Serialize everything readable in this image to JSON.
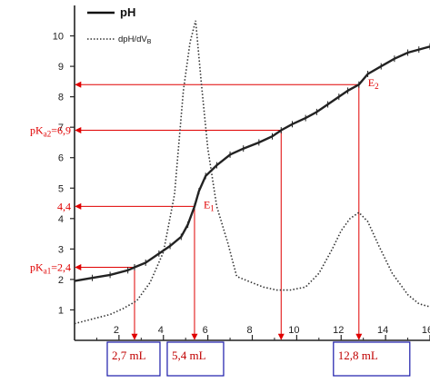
{
  "chart_data": {
    "type": "line",
    "xlim": [
      0,
      16
    ],
    "ylim": [
      0,
      11
    ],
    "x_ticks": [
      "2",
      "4",
      "6",
      "8",
      "10",
      "12",
      "14",
      "16"
    ],
    "x_tick_values": [
      2,
      4,
      6,
      8,
      10,
      12,
      14,
      16
    ],
    "y_ticks": [
      "1",
      "2",
      "3",
      "4",
      "5",
      "6",
      "7",
      "8",
      "9",
      "10"
    ],
    "y_tick_values": [
      1,
      2,
      3,
      4,
      5,
      6,
      7,
      8,
      9,
      10
    ],
    "grid": false,
    "legend_position": "top-left",
    "series": [
      {
        "name": "pH",
        "style": "solid",
        "color": "#222222",
        "x": [
          0,
          0.8,
          1.6,
          2.4,
          2.7,
          3.2,
          3.8,
          4.3,
          4.8,
          5.1,
          5.4,
          5.6,
          5.9,
          6.4,
          7.0,
          7.6,
          8.3,
          8.9,
          9.3,
          9.8,
          10.4,
          10.9,
          11.4,
          11.9,
          12.3,
          12.8,
          13.2,
          13.8,
          14.4,
          15.0,
          15.5,
          16.0
        ],
        "y": [
          1.95,
          2.05,
          2.15,
          2.3,
          2.4,
          2.55,
          2.85,
          3.1,
          3.4,
          3.8,
          4.4,
          4.9,
          5.4,
          5.75,
          6.1,
          6.3,
          6.5,
          6.7,
          6.9,
          7.1,
          7.3,
          7.5,
          7.75,
          8.0,
          8.2,
          8.4,
          8.75,
          9.0,
          9.25,
          9.45,
          9.55,
          9.65
        ]
      },
      {
        "name": "dpH/dVB",
        "style": "dotted",
        "color": "#333333",
        "x": [
          0,
          0.8,
          1.6,
          2.2,
          2.8,
          3.4,
          4.0,
          4.5,
          4.9,
          5.2,
          5.45,
          5.7,
          6.0,
          6.4,
          6.9,
          7.3,
          7.8,
          8.5,
          9.1,
          9.7,
          10.4,
          11.0,
          11.6,
          12.0,
          12.4,
          12.8,
          13.2,
          13.7,
          14.3,
          15.0,
          15.5,
          16.0
        ],
        "y": [
          0.55,
          0.7,
          0.85,
          1.05,
          1.3,
          1.9,
          2.9,
          4.8,
          8.2,
          9.8,
          10.5,
          8.5,
          6.3,
          4.4,
          3.2,
          2.1,
          1.95,
          1.75,
          1.65,
          1.65,
          1.75,
          2.2,
          3.0,
          3.6,
          4.0,
          4.2,
          3.9,
          3.1,
          2.2,
          1.5,
          1.2,
          1.1
        ]
      }
    ],
    "markers": [
      {
        "label": "E",
        "subscript": "1",
        "x": 5.4,
        "y": 4.4
      },
      {
        "label": "E",
        "subscript": "2",
        "x": 12.8,
        "y": 8.4
      }
    ],
    "reference_lines": [
      {
        "y": 8.4,
        "x_end": 12.8,
        "y_label": "",
        "y_label_sub": ""
      },
      {
        "y": 6.9,
        "x_end": 9.3,
        "y_label": "pK",
        "y_label_sub": "a2",
        "y_label_suffix": "=6,9"
      },
      {
        "y": 4.4,
        "x_end": 5.4,
        "y_label": "4,4",
        "y_label_sub": ""
      },
      {
        "y": 2.4,
        "x_end": 2.7,
        "y_label": "pK",
        "y_label_sub": "a1",
        "y_label_suffix": "=2,4"
      }
    ],
    "volume_labels": [
      {
        "x": 2.7,
        "text": "2,7 mL"
      },
      {
        "x": 5.4,
        "text": "5,4 mL"
      },
      {
        "x": 12.8,
        "text": "12,8 mL"
      }
    ],
    "legend": {
      "ph": "pH",
      "derivative_main": "dpH/dV",
      "derivative_sub": "B"
    },
    "colors": {
      "annotation": "#e00000",
      "box_border": "#1a1aaa",
      "axis": "#222222"
    }
  }
}
